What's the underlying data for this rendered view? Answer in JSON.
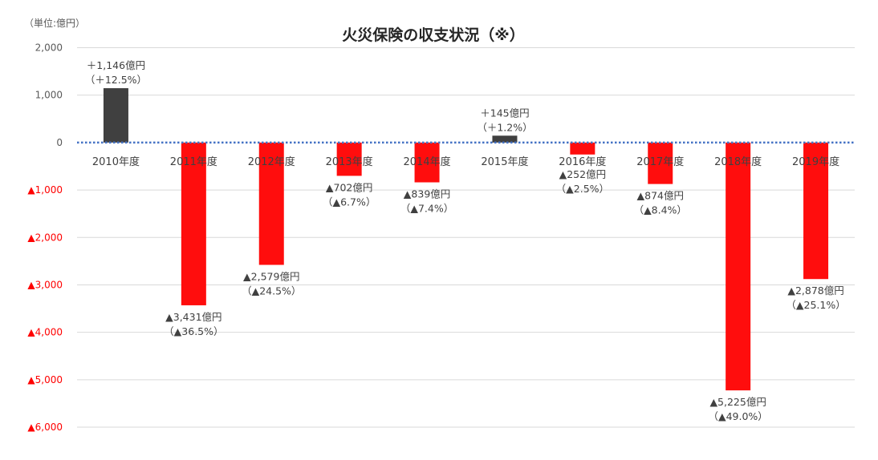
{
  "chart_data": {
    "type": "bar",
    "title": "火災保険の収支状況（※）",
    "unit_label": "（単位:億円）",
    "categories": [
      "2010年度",
      "2011年度",
      "2012年度",
      "2013年度",
      "2014年度",
      "2015年度",
      "2016年度",
      "2017年度",
      "2018年度",
      "2019年度"
    ],
    "values": [
      1146,
      -3431,
      -2579,
      -702,
      -839,
      145,
      -252,
      -874,
      -5225,
      -2878
    ],
    "data_labels": [
      [
        "＋1,146億円",
        "（＋12.5%）"
      ],
      [
        "▲3,431億円",
        "（▲36.5%）"
      ],
      [
        "▲2,579億円",
        "（▲24.5%）"
      ],
      [
        "▲702億円",
        "（▲6.7%）"
      ],
      [
        "▲839億円",
        "（▲7.4%）"
      ],
      [
        "＋145億円",
        "（＋1.2%）"
      ],
      [
        "▲252億円",
        "（▲2.5%）"
      ],
      [
        "▲874億円",
        "（▲8.4%）"
      ],
      [
        "▲5,225億円",
        "（▲49.0%）"
      ],
      [
        "▲2,878億円",
        "（▲25.1%）"
      ]
    ],
    "ylim": [
      -6000,
      2000
    ],
    "yticks": [
      2000,
      1000,
      0,
      -1000,
      -2000,
      -3000,
      -4000,
      -5000,
      -6000
    ],
    "ytick_labels": [
      "2,000",
      "1,000",
      "0",
      "▲1,000",
      "▲2,000",
      "▲3,000",
      "▲4,000",
      "▲5,000",
      "▲6,000"
    ],
    "grid": true,
    "colors": {
      "positive": "#404040",
      "negative": "#ff0d0d",
      "zero_line": "#4472c4",
      "grid": "#d9d9d9",
      "tick_positive": "#595959",
      "tick_negative": "#ff0000"
    }
  }
}
